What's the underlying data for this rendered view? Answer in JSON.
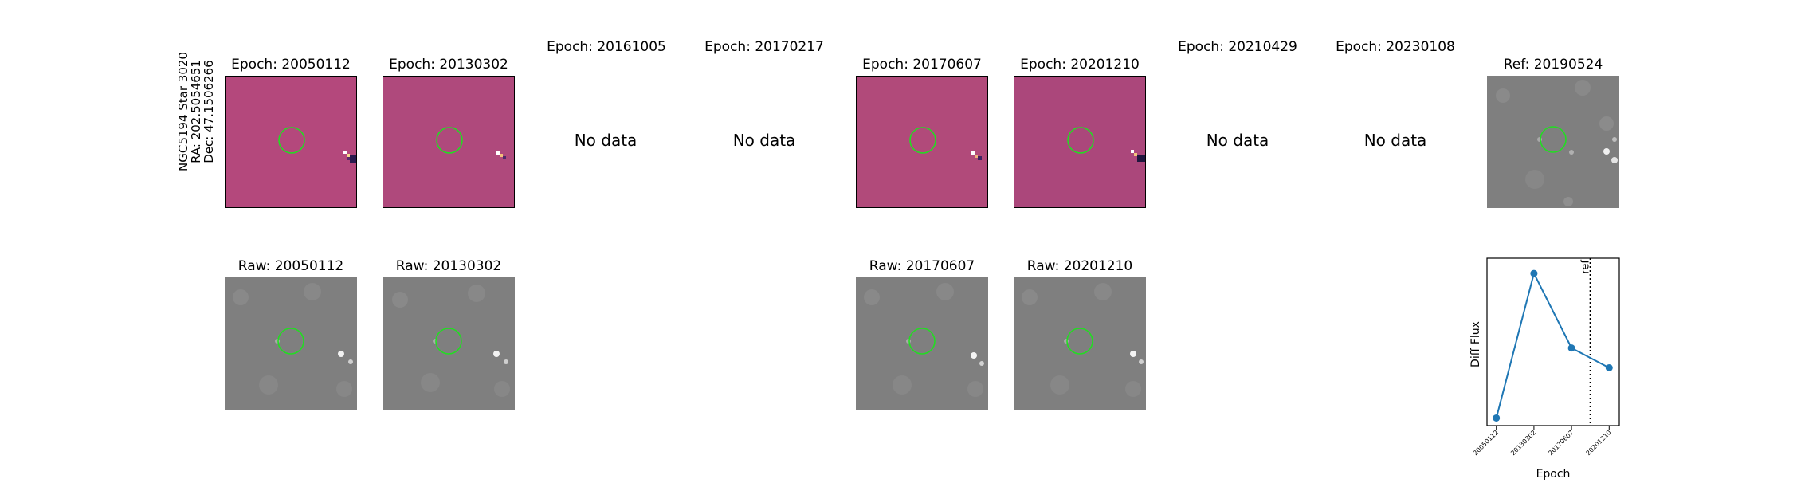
{
  "row_label": {
    "line1": "NGC5194 Star 3020",
    "line2": "RA: 202.5054651",
    "line3": "Dec: 47.1506266"
  },
  "diff_titles": [
    "Epoch: 20050112",
    "Epoch: 20130302",
    "Epoch: 20161005",
    "Epoch: 20170217",
    "Epoch: 20170607",
    "Epoch: 20201210",
    "Epoch: 20210429",
    "Epoch: 20230108"
  ],
  "no_data_text": "No data",
  "ref_title": "Ref: 20190524",
  "raw_titles": [
    "Raw: 20050112",
    "Raw: 20130302",
    "Raw: 20170607",
    "Raw: 20201210"
  ],
  "colors": {
    "diff_bg": "#b84a7c",
    "raw_bg": "#7f7f7f",
    "aperture": "#22dd22",
    "line": "#1f77b4"
  },
  "chart_data": {
    "type": "line",
    "xlabel": "Epoch",
    "ylabel": "Diff Flux",
    "categories": [
      "20050112",
      "20130302",
      "20170607",
      "20201210"
    ],
    "x_index": [
      0,
      1,
      2,
      3
    ],
    "values": [
      0.05,
      1.0,
      0.51,
      0.38
    ],
    "ylim": [
      0,
      1.1
    ],
    "ref_line": {
      "x_index": 2.5,
      "label": "ref"
    },
    "grid": false,
    "yticks_visible": false
  }
}
